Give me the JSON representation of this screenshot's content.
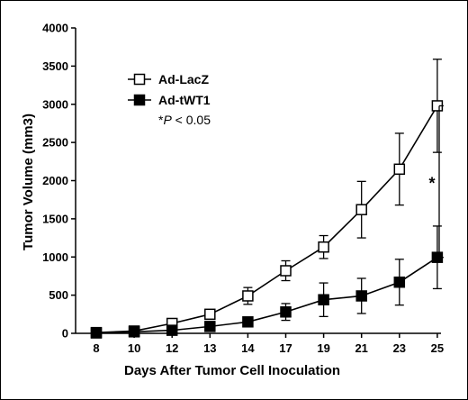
{
  "chart_data": {
    "type": "line",
    "xlabel": "Days After Tumor Cell Inoculation",
    "ylabel": "Tumor Volume (mm3)",
    "categories": [
      "8",
      "10",
      "12",
      "13",
      "14",
      "17",
      "19",
      "21",
      "23",
      "25"
    ],
    "ylim": [
      0,
      4000
    ],
    "yticks": [
      0,
      500,
      1000,
      1500,
      2000,
      2500,
      3000,
      3500,
      4000
    ],
    "grid": false,
    "legend_position": "top-left",
    "series": [
      {
        "name": "Ad-LacZ",
        "marker": "open-square",
        "color": "#000000",
        "values": [
          10,
          30,
          130,
          250,
          490,
          820,
          1130,
          1620,
          2150,
          2980
        ],
        "errors": [
          15,
          20,
          40,
          60,
          110,
          130,
          150,
          370,
          470,
          610
        ]
      },
      {
        "name": "Ad-tWT1",
        "marker": "filled-square",
        "color": "#000000",
        "values": [
          5,
          20,
          40,
          90,
          150,
          280,
          440,
          490,
          670,
          995
        ],
        "errors": [
          10,
          15,
          25,
          40,
          40,
          110,
          220,
          230,
          300,
          410
        ]
      }
    ],
    "annotations": {
      "pvalue_prefix": "*",
      "pvalue_italic": "P",
      "pvalue_suffix": " < 0.05",
      "significance_mark": "*"
    }
  }
}
